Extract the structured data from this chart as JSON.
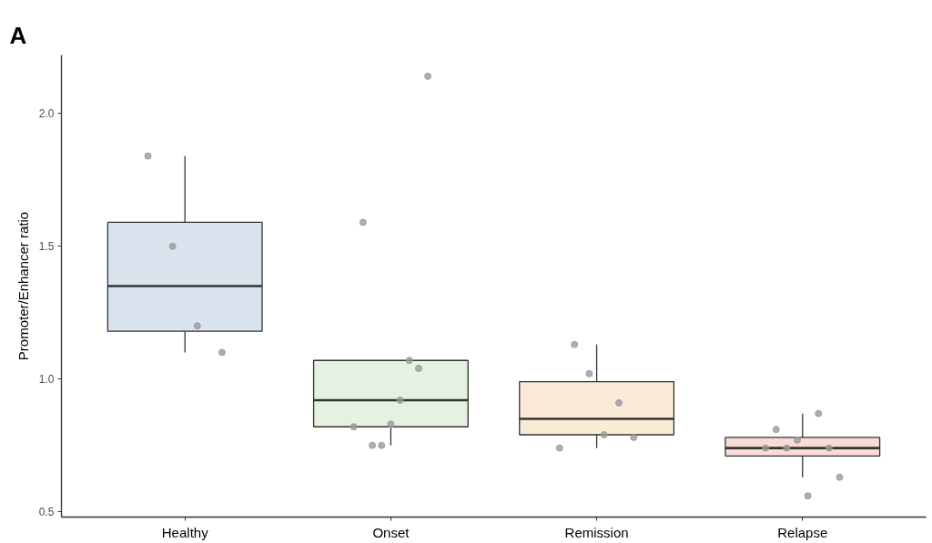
{
  "chart_data": {
    "type": "box",
    "title": "A",
    "ylabel": "Promoter/Enhancer ratio",
    "categories": [
      "Healthy",
      "Onset",
      "Remission",
      "Relapse"
    ],
    "boxes": [
      {
        "low": 1.1,
        "q1": 1.18,
        "median": 1.35,
        "q3": 1.59,
        "high": 1.84
      },
      {
        "low": 0.75,
        "q1": 0.82,
        "median": 0.92,
        "q3": 1.07,
        "high": 1.07
      },
      {
        "low": 0.74,
        "q1": 0.79,
        "median": 0.85,
        "q3": 0.99,
        "high": 1.13
      },
      {
        "low": 0.63,
        "q1": 0.71,
        "median": 0.74,
        "q3": 0.78,
        "high": 0.87
      }
    ],
    "colors": [
      "#dae4ef",
      "#e5f1e1",
      "#faebd7",
      "#f9dbd7"
    ],
    "series": [
      {
        "type": "scatter",
        "color": "#9a9a9a",
        "x": [
          "Healthy",
          "Healthy",
          "Healthy",
          "Healthy",
          "Onset",
          "Onset",
          "Onset",
          "Onset",
          "Onset",
          "Onset",
          "Onset",
          "Onset",
          "Onset",
          "Remission",
          "Remission",
          "Remission",
          "Remission",
          "Remission",
          "Remission",
          "Relapse",
          "Relapse",
          "Relapse",
          "Relapse",
          "Relapse",
          "Relapse",
          "Relapse",
          "Relapse"
        ],
        "values": [
          1.84,
          1.5,
          1.2,
          1.1,
          0.82,
          1.59,
          0.75,
          0.75,
          0.83,
          0.92,
          1.07,
          1.04,
          2.14,
          0.74,
          1.13,
          1.02,
          0.79,
          0.91,
          0.78,
          0.74,
          0.81,
          0.74,
          0.77,
          0.56,
          0.87,
          0.74,
          0.63
        ]
      }
    ],
    "ylim": [
      0.48,
      2.22
    ],
    "yticks": [
      0.5,
      {
        "value": 1,
        "label": "1.0"
      },
      1.5,
      {
        "value": 2,
        "label": "2.0"
      }
    ],
    "grid": false,
    "marker": "circle"
  }
}
